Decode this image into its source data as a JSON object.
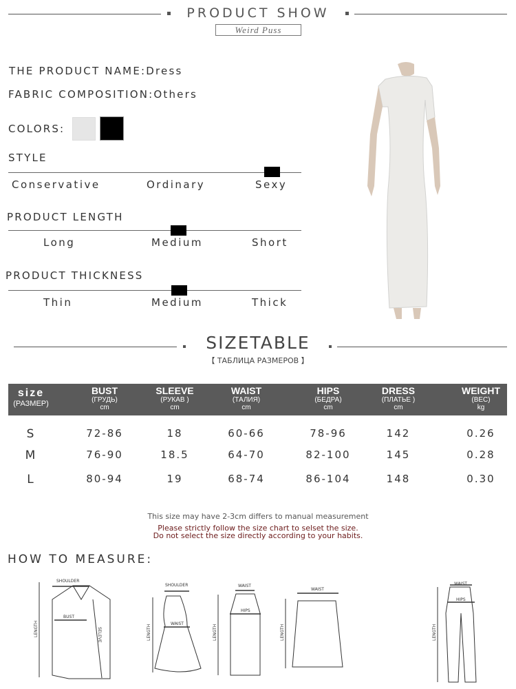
{
  "header": {
    "title": "PRODUCT SHOW",
    "brand": "Weird Puss"
  },
  "product": {
    "name_label": "THE PRODUCT NAME:",
    "name": "Dress",
    "fabric_label": "FABRIC COMPOSITION:",
    "fabric": "Others",
    "colors_label": "COLORS:",
    "colors": [
      "#e6e6e6",
      "#000000"
    ]
  },
  "scales": [
    {
      "title": "STYLE",
      "options": [
        "Conservative",
        "Ordinary",
        "Sexy"
      ],
      "selected": "Sexy",
      "level": 0.9
    },
    {
      "title": "PRODUCT LENGTH",
      "options": [
        "Long",
        "Medium",
        "Short"
      ],
      "selected": "Medium",
      "level": 0.58
    },
    {
      "title": "PRODUCT THICKNESS",
      "options": [
        "Thin",
        "Medium",
        "Thick"
      ],
      "selected": "Medium",
      "level": 0.58
    }
  ],
  "sizetable": {
    "title": "SIZETABLE",
    "subtitle": "【 ТАБЛИЦА РАЗМЕРОВ 】",
    "headers": [
      {
        "name": "size",
        "ru": "(РАЗМЕР)",
        "unit": ""
      },
      {
        "name": "BUST",
        "ru": "(ГРУДЬ)",
        "unit": "cm"
      },
      {
        "name": "SLEEVE",
        "ru": "(РУКАВ )",
        "unit": "cm"
      },
      {
        "name": "WAIST",
        "ru": "(ТАЛИЯ)",
        "unit": "cm"
      },
      {
        "name": "HIPS",
        "ru": "(БЕДРА)",
        "unit": "cm"
      },
      {
        "name": "DRESS",
        "ru": "(ПЛАТЬЕ )",
        "unit": "cm"
      },
      {
        "name": "WEIGHT",
        "ru": "(ВЕС)",
        "unit": "kg"
      }
    ],
    "rows": [
      [
        "S",
        "72-86",
        "18",
        "60-66",
        "78-96",
        "142",
        "0.26"
      ],
      [
        "M",
        "76-90",
        "18.5",
        "64-70",
        "82-100",
        "145",
        "0.28"
      ],
      [
        "L",
        "80-94",
        "19",
        "68-74",
        "86-104",
        "148",
        "0.30"
      ]
    ],
    "header_bg": "#5a5a5a"
  },
  "notes": {
    "line1": "This size may have 2-3cm differs to manual measurement",
    "line2": "Please strictly follow the size chart to selset the size.",
    "line3": "Do not select the size directly according to your habits.",
    "warn_color": "#6b1a1a"
  },
  "measure": {
    "title": "HOW TO MEASURE:",
    "labels": {
      "shoulder": "SHOULDER",
      "bust": "BUST",
      "length": "LENGTH",
      "sleeve": "SELEVE",
      "waist": "WAIST",
      "hips": "HIPS"
    }
  }
}
